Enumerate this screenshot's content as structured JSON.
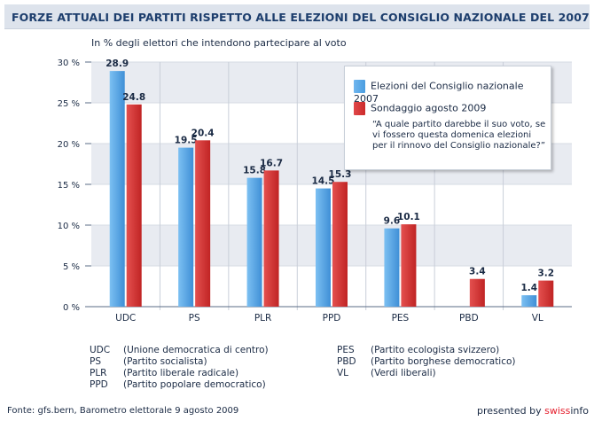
{
  "title": "FORZE ATTUALI DEI PARTITI RISPETTO ALLE ELEZIONI DEL CONSIGLIO NAZIONALE DEL 2007",
  "subtitle": "In % degli elettori che intendono partecipare al voto",
  "legend": {
    "series1": "Elezioni del Consiglio nazionale 2007",
    "series2": "Sondaggio agosto 2009",
    "question": "“A quale partito darebbe il suo voto, se vi fossero questa domenica elezioni per il rinnovo del Consiglio nazionale?”"
  },
  "abbreviations": [
    {
      "code": "UDC",
      "name": "(Unione democratica di centro)"
    },
    {
      "code": "PS",
      "name": "(Partito socialista)"
    },
    {
      "code": "PLR",
      "name": "(Partito liberale radicale)"
    },
    {
      "code": "PPD",
      "name": "(Partito popolare democratico)"
    },
    {
      "code": "PES",
      "name": "(Partito ecologista svizzero)"
    },
    {
      "code": "PBD",
      "name": "(Partito borghese democratico)"
    },
    {
      "code": "VL",
      "name": "(Verdi liberali)"
    }
  ],
  "source": "Fonte: gfs.bern, Barometro elettorale 9 agosto 2009",
  "presented": {
    "prefix": "presented by ",
    "brand_a": "swiss",
    "brand_b": "info"
  },
  "colors": {
    "blue": "#4a9de0",
    "red": "#cc2b2b",
    "band": "#e8ebf1",
    "header": "#dde3ec",
    "title": "#1d3e6d"
  },
  "chart_data": {
    "type": "bar",
    "categories": [
      "UDC",
      "PS",
      "PLR",
      "PPD",
      "PES",
      "PBD",
      "VL"
    ],
    "series": [
      {
        "name": "Elezioni del Consiglio nazionale 2007",
        "values": [
          28.9,
          19.5,
          15.8,
          14.5,
          9.6,
          null,
          1.4
        ],
        "labels": [
          "28.9",
          "19.5",
          "15.8",
          "14.5",
          "9.6",
          "",
          "1.4"
        ]
      },
      {
        "name": "Sondaggio agosto 2009",
        "values": [
          24.8,
          20.4,
          16.7,
          15.3,
          10.1,
          3.4,
          3.2
        ],
        "labels": [
          "24.8",
          "20.4",
          "16.7",
          "15.3",
          "10.1",
          "3.4",
          "3.2"
        ]
      }
    ],
    "yticks": [
      "0 %",
      "5 %",
      "10 %",
      "15 %",
      "20 %",
      "25 %",
      "30 %"
    ],
    "ylim": [
      0,
      30
    ]
  }
}
